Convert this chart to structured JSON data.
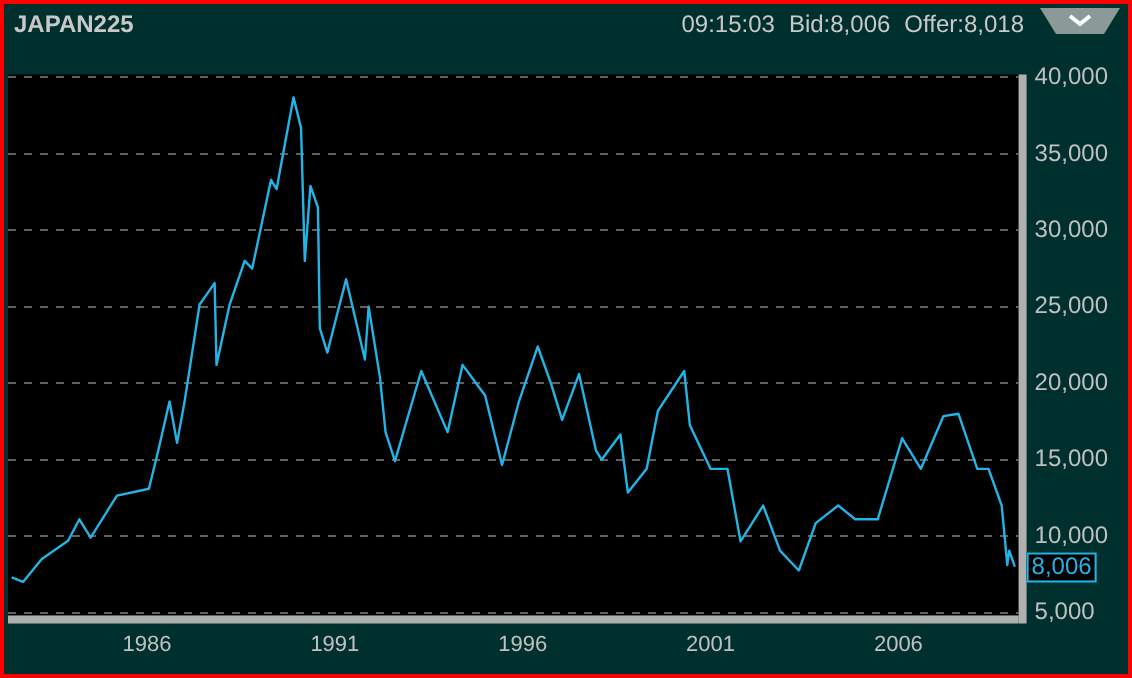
{
  "chart_data": {
    "type": "line",
    "title": "JAPAN225",
    "annotations": [
      "09:15:03",
      "Bid:8,006",
      "Offer:8,018"
    ],
    "x": [
      1982.4,
      1982.7,
      1983.2,
      1983.9,
      1984.2,
      1984.5,
      1985.2,
      1986.05,
      1986.3,
      1986.6,
      1986.8,
      1987.0,
      1987.4,
      1987.8,
      1987.85,
      1988.2,
      1988.6,
      1988.8,
      1989.3,
      1989.45,
      1989.9,
      1990.1,
      1990.2,
      1990.35,
      1990.55,
      1990.6,
      1990.8,
      1991.3,
      1991.8,
      1991.9,
      1992.2,
      1992.35,
      1992.6,
      1993.3,
      1994.0,
      1994.4,
      1995.0,
      1995.45,
      1995.9,
      1996.4,
      1996.75,
      1997.05,
      1997.5,
      1997.95,
      1998.1,
      1998.6,
      1998.8,
      1999.3,
      1999.6,
      2000.3,
      2000.45,
      2001.0,
      2001.45,
      2001.8,
      2002.4,
      2002.85,
      2003.35,
      2003.8,
      2004.4,
      2004.85,
      2005.45,
      2006.1,
      2006.6,
      2007.2,
      2007.6,
      2008.1,
      2008.4,
      2008.75,
      2008.9,
      2008.95,
      2009.1
    ],
    "series": [
      {
        "color": "#22b4e6",
        "values": [
          7300,
          7000,
          8500,
          9700,
          11100,
          9900,
          12650,
          13100,
          15600,
          18800,
          16100,
          18800,
          25150,
          26550,
          21200,
          25150,
          28000,
          27500,
          33300,
          32700,
          38700,
          36700,
          28000,
          32900,
          31500,
          23600,
          22000,
          26800,
          21550,
          25000,
          20400,
          16800,
          14900,
          20800,
          16800,
          21200,
          19200,
          14650,
          18800,
          22400,
          20000,
          17600,
          20600,
          15600,
          15000,
          16650,
          12850,
          14400,
          18200,
          20800,
          17250,
          14400,
          14400,
          9650,
          12000,
          9050,
          7750,
          10850,
          12000,
          11100,
          11100,
          16400,
          14400,
          17850,
          18000,
          14400,
          14400,
          12000,
          8100,
          9050,
          8006
        ],
        "value_labels": [
          null,
          null,
          null,
          null,
          null,
          null,
          null,
          null,
          null,
          null,
          null,
          null,
          null,
          null,
          null,
          null,
          null,
          null,
          null,
          null,
          null,
          null,
          null,
          null,
          null,
          null,
          null,
          null,
          null,
          null,
          null,
          null,
          null,
          null,
          null,
          null,
          null,
          null,
          null,
          null,
          null,
          null,
          null,
          null,
          null,
          null,
          null,
          null,
          null,
          null,
          null,
          null,
          null,
          null,
          null,
          null,
          null,
          null,
          null,
          null,
          null,
          null,
          null,
          null,
          null,
          null,
          null,
          null,
          null,
          null,
          "8,006"
        ]
      }
    ],
    "xlim": [
      1982.3,
      2009.2
    ],
    "xticks": [
      1986,
      1991,
      1996,
      2001,
      2006
    ],
    "ylim": [
      4800,
      40200
    ],
    "yticks": [
      {
        "value": 5000,
        "label": "5,000"
      },
      {
        "value": 10000,
        "label": "10,000"
      },
      {
        "value": 15000,
        "label": "15,000"
      },
      {
        "value": 20000,
        "label": "20,000"
      },
      {
        "value": 25000,
        "label": "25,000"
      },
      {
        "value": 30000,
        "label": "30,000"
      },
      {
        "value": 35000,
        "label": "35,000"
      },
      {
        "value": 40000,
        "label": "40,000"
      }
    ],
    "grid": "y",
    "marker": "none",
    "line_style": "solid"
  }
}
